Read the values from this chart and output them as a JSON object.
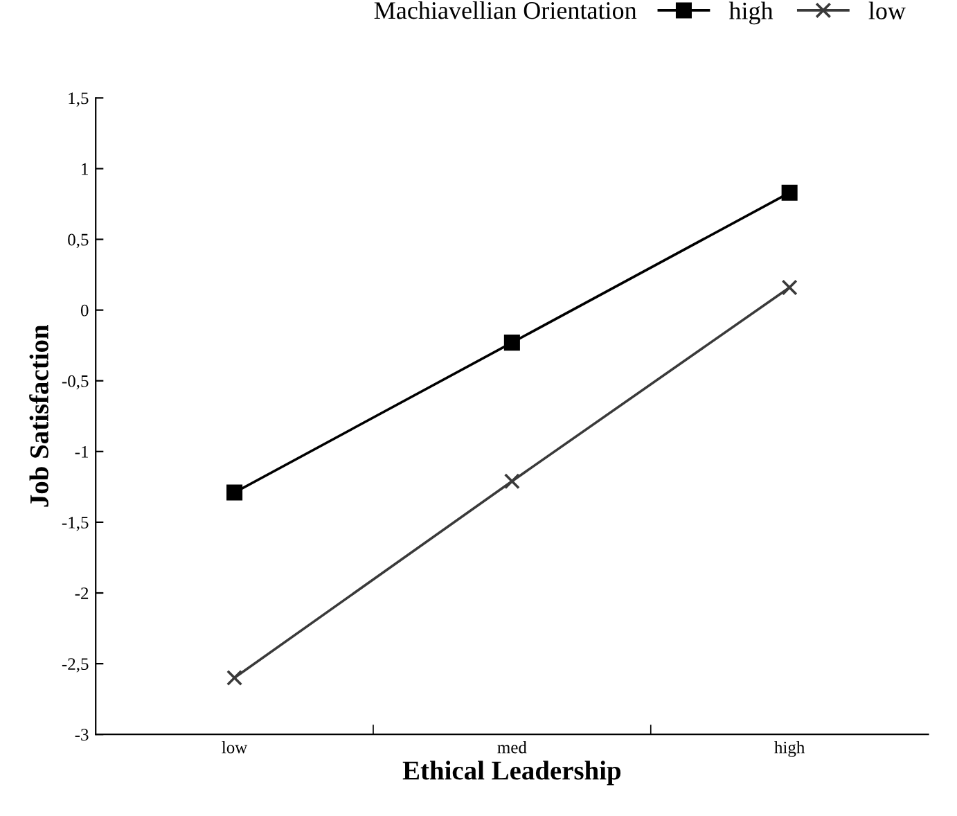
{
  "chart_data": {
    "type": "line",
    "xlabel": "Ethical Leadership",
    "ylabel": "Job Satisfaction",
    "legend_title": "Machiavellian Orientation",
    "legend": "top",
    "categories": [
      "low",
      "med",
      "high"
    ],
    "series": [
      {
        "name": "high",
        "color": "#000000",
        "marker": "square",
        "values": [
          -1.29,
          -0.23,
          0.83
        ]
      },
      {
        "name": "low",
        "color": "#3a3a3a",
        "marker": "cross",
        "values": [
          -2.6,
          -1.21,
          0.16
        ]
      }
    ],
    "ylim": [
      -3,
      1.5
    ],
    "yticks": [
      {
        "value": -3,
        "label": "-3"
      },
      {
        "value": -2.5,
        "label": "-2,5"
      },
      {
        "value": -2,
        "label": "-2"
      },
      {
        "value": -1.5,
        "label": "-1,5"
      },
      {
        "value": -1,
        "label": "-1"
      },
      {
        "value": -0.5,
        "label": "-0,5"
      },
      {
        "value": 0,
        "label": "0"
      },
      {
        "value": 0.5,
        "label": "0,5"
      },
      {
        "value": 1,
        "label": "1"
      },
      {
        "value": 1.5,
        "label": "1,5"
      }
    ],
    "grid": false,
    "line_style": "solid"
  }
}
